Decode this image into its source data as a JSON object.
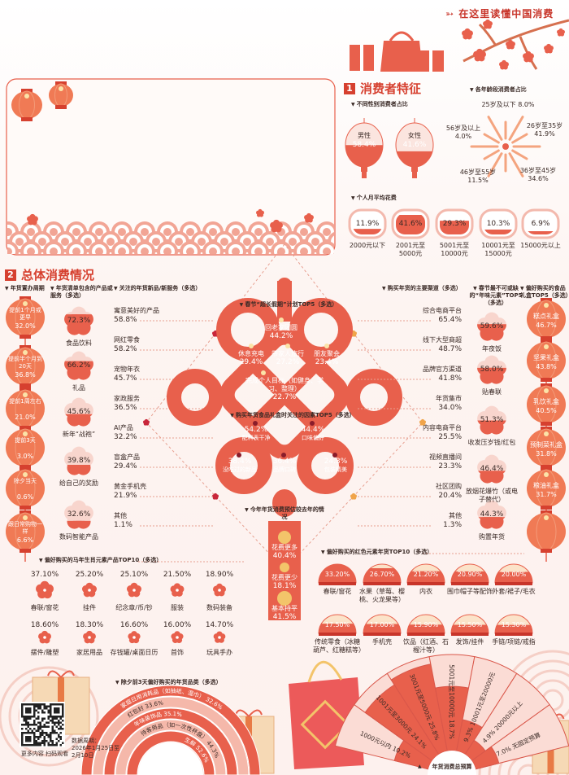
{
  "header": {
    "slogan": "在这里读懂中国消费"
  },
  "section1": {
    "num": "1",
    "title": "消费者特征"
  },
  "section2": {
    "num": "2",
    "title": "总体消费情况"
  },
  "colors": {
    "primary": "#e8604c",
    "light": "#f8d5cd",
    "dark_red": "#d6402f",
    "gold": "#f3c46a",
    "lantern": "#f07a55"
  },
  "footer": {
    "qr_caption": "更多内容 扫码观看",
    "period_label": "数据周期：",
    "period_value": "2026年1月25日至2月10日"
  },
  "chart_data": [
    {
      "title": "不同性别消费者占比",
      "type": "pie",
      "unit": "%",
      "categories": [
        "男性",
        "女性"
      ],
      "values": [
        58.4,
        41.6
      ]
    },
    {
      "title": "各年龄段消费者占比",
      "type": "pie",
      "unit": "%",
      "categories": [
        "25岁及以下",
        "26岁至35岁",
        "36岁至45岁",
        "46岁至55岁",
        "56岁及以上"
      ],
      "values": [
        8.0,
        41.9,
        34.6,
        11.5,
        4.0
      ]
    },
    {
      "title": "个人月平均花费",
      "type": "bar",
      "unit": "%",
      "categories": [
        "2000元以下",
        "2001元至5000元",
        "5001元至10000元",
        "10001元至15000元",
        "15000元以上"
      ],
      "values": [
        11.9,
        41.6,
        29.3,
        10.3,
        6.9
      ]
    },
    {
      "title": "年货置办周期",
      "type": "bar",
      "unit": "%",
      "categories": [
        "提前1个月或更早",
        "提前半个月到20天",
        "提前1周左右",
        "提前3天",
        "除夕当天",
        "跟日常购物一样"
      ],
      "values": [
        32.0,
        36.8,
        21.0,
        3.0,
        0.6,
        6.6
      ]
    },
    {
      "title": "年货清单包含的产品或服务（多选）",
      "type": "bar",
      "unit": "%",
      "categories": [
        "食品饮料",
        "礼品",
        "新年“战袍”",
        "给自己的奖励",
        "数码智能产品"
      ],
      "values": [
        72.3,
        66.2,
        45.6,
        39.8,
        32.6
      ]
    },
    {
      "title": "关注的年货新品/新服务（多选）",
      "type": "bar",
      "unit": "%",
      "categories": [
        "寓意美好的产品",
        "网红零食",
        "宠物年衣",
        "家政服务",
        "AI产品",
        "盲盒产品",
        "黄金手机壳",
        "其他"
      ],
      "values": [
        58.8,
        58.2,
        45.7,
        36.5,
        32.2,
        29.4,
        21.9,
        1.1
      ]
    },
    {
      "title": "春节“超长假期”计划TOP5（多选）",
      "type": "bar",
      "unit": "%",
      "categories": [
        "回老家团圆",
        "休息充电",
        "带家人旅行",
        "朋友聚会",
        "完成个人目标（如健身、学习、整理）"
      ],
      "values": [
        44.2,
        29.4,
        27.2,
        23.4,
        22.7
      ]
    },
    {
      "title": "购买年货食品礼盒时关注的因素TOP5（多选）",
      "type": "bar",
      "unit": "%",
      "categories": [
        "配料表干净",
        "口味偏好",
        "没吃过的新品",
        "品牌口碑",
        "包装精美"
      ],
      "values": [
        54.2,
        44.4,
        38.4,
        36.4,
        24.3
      ]
    },
    {
      "title": "今年年货消费预估较去年的情况",
      "type": "pie",
      "unit": "%",
      "categories": [
        "花费更多",
        "花费更少",
        "基本持平"
      ],
      "values": [
        40.4,
        18.1,
        41.5
      ]
    },
    {
      "title": "购买年货的主要渠道（多选）",
      "type": "bar",
      "unit": "%",
      "categories": [
        "综合电商平台",
        "线下大型商超",
        "品牌官方渠道",
        "年货集市",
        "内容电商平台",
        "视频直播间",
        "社区团购",
        "其他"
      ],
      "values": [
        65.4,
        48.7,
        41.8,
        34.0,
        25.5,
        23.3,
        20.4,
        1.3
      ]
    },
    {
      "title": "春节最不可或缺的“年味元素”TOP5（多选）",
      "type": "bar",
      "unit": "%",
      "categories": [
        "年夜饭",
        "贴春联",
        "收发压岁钱/红包",
        "放烟花爆竹（或电子替代）",
        "购置年货"
      ],
      "values": [
        59.6,
        58.0,
        51.3,
        46.4,
        44.3
      ]
    },
    {
      "title": "偏好购买的食品礼盒TOP5（多选）",
      "type": "bar",
      "unit": "%",
      "categories": [
        "糕点礼盒",
        "坚果礼盒",
        "乳饮礼盒",
        "预制菜礼盒",
        "粮油礼盒"
      ],
      "values": [
        46.7,
        43.8,
        40.5,
        31.8,
        31.7
      ]
    },
    {
      "title": "偏好购买的马年生肖元素产品TOP10（多选）",
      "type": "bar",
      "unit": "%",
      "decimals": 2,
      "categories": [
        "春联/窗花",
        "挂件",
        "纪念章/币/钞",
        "服装",
        "数码装备",
        "摆件/雕塑",
        "家居用品",
        "存钱罐/桌面日历",
        "首饰",
        "玩具手办"
      ],
      "values": [
        37.1,
        25.2,
        25.1,
        21.5,
        18.9,
        18.6,
        18.3,
        16.6,
        16.0,
        14.7
      ]
    },
    {
      "title": "偏好购买的红色元素年货TOP10（多选）",
      "type": "bar",
      "unit": "%",
      "decimals": 2,
      "categories": [
        "春联/窗花",
        "水果（草莓、樱桃、火龙果等）",
        "内衣",
        "围巾帽子等配饰",
        "外套/裙子/毛衣",
        "传统零食（冰糖葫芦、红糖糕等）",
        "手机壳",
        "饮品（红酒、石榴汁等）",
        "发饰/挂件",
        "手链/项链/戒指"
      ],
      "values": [
        33.2,
        26.7,
        21.2,
        20.9,
        20.0,
        17.5,
        17.0,
        15.9,
        15.5,
        15.3
      ]
    },
    {
      "title": "除夕前3天偏好购买的年货品类（多选）",
      "type": "bar",
      "unit": "%",
      "categories": [
        "生鲜",
        "待客用品（如一次性杯盘）",
        "年味装饰品",
        "红包封",
        "家庭日用消耗品（如抽纸、湿巾）"
      ],
      "values": [
        52.6,
        44.3,
        35.1,
        33.6,
        32.6
      ]
    },
    {
      "title": "年货消费总预算",
      "type": "pie",
      "unit": "%",
      "categories": [
        "1000元以内",
        "1001元至3000元",
        "3001元至5000元",
        "5001元至10000元",
        "10001元至20000元",
        "20000元以上",
        "无固定预算"
      ],
      "values": [
        10.2,
        24.1,
        25.8,
        18.7,
        9.3,
        4.9,
        7.0
      ]
    }
  ]
}
